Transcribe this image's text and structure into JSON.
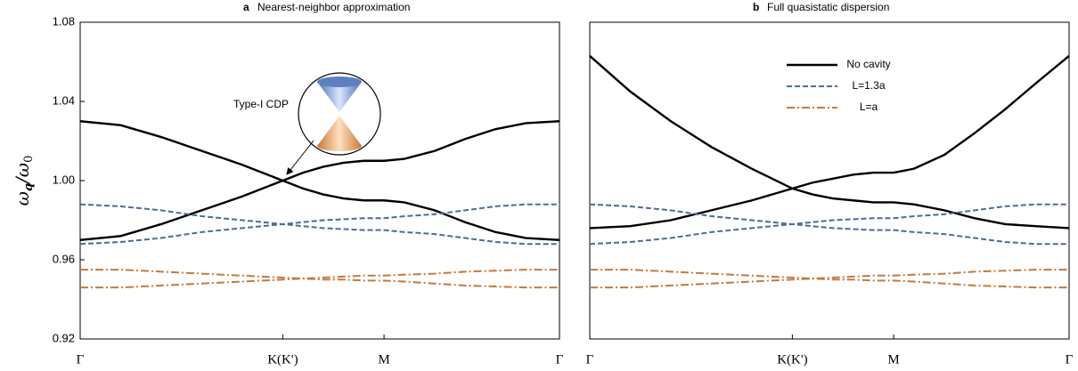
{
  "chart_data": [
    {
      "type": "line",
      "panel_label": "a",
      "title": "Nearest-neighbor approximation",
      "ylabel": [
        "ω",
        "q",
        "/ω",
        "0"
      ],
      "annotation": "Type-I CDP",
      "x": [
        0,
        0.2,
        0.4,
        0.6,
        0.8,
        1.0,
        1.1,
        1.2,
        1.3,
        1.4,
        1.5,
        1.6,
        1.75,
        1.9,
        2.05,
        2.2,
        2.366
      ],
      "xlim": [
        0,
        2.366
      ],
      "xticks": [
        {
          "value": 0,
          "label": "Γ"
        },
        {
          "value": 1,
          "label": "K(K')"
        },
        {
          "value": 1.5,
          "label": "M"
        },
        {
          "value": 2.366,
          "label": "Γ"
        }
      ],
      "ylim": [
        0.92,
        1.08
      ],
      "yticks": [
        0.92,
        0.96,
        {
          "value": 1,
          "label": "1.00"
        },
        1.04,
        1.08
      ],
      "series": [
        {
          "color": "#000000",
          "dash": "solid",
          "values": [
            1.03,
            1.028,
            1.022,
            1.015,
            1.008,
            1.0,
            0.996,
            0.993,
            0.991,
            0.99,
            0.99,
            0.989,
            0.985,
            0.979,
            0.974,
            0.971,
            0.97
          ]
        },
        {
          "color": "#000000",
          "dash": "solid",
          "values": [
            0.97,
            0.972,
            0.978,
            0.985,
            0.992,
            1.0,
            1.004,
            1.007,
            1.009,
            1.01,
            1.01,
            1.011,
            1.015,
            1.021,
            1.026,
            1.029,
            1.03
          ]
        },
        {
          "color": "#4f6a9a",
          "dash": "dashed",
          "values": [
            0.988,
            0.987,
            0.985,
            0.982,
            0.98,
            0.978,
            0.977,
            0.976,
            0.9755,
            0.975,
            0.975,
            0.974,
            0.973,
            0.971,
            0.969,
            0.968,
            0.968
          ]
        },
        {
          "color": "#4f6a9a",
          "dash": "dashed",
          "values": [
            0.968,
            0.969,
            0.971,
            0.974,
            0.976,
            0.978,
            0.979,
            0.98,
            0.9805,
            0.981,
            0.981,
            0.982,
            0.983,
            0.985,
            0.987,
            0.988,
            0.988
          ]
        },
        {
          "color": "#c47a3e",
          "dash": "dashdot",
          "values": [
            0.955,
            0.955,
            0.954,
            0.953,
            0.952,
            0.951,
            0.9505,
            0.95,
            0.95,
            0.9495,
            0.9495,
            0.949,
            0.948,
            0.947,
            0.9465,
            0.946,
            0.946
          ]
        },
        {
          "color": "#c47a3e",
          "dash": "dashdot",
          "values": [
            0.946,
            0.946,
            0.947,
            0.948,
            0.949,
            0.95,
            0.9505,
            0.951,
            0.9515,
            0.952,
            0.952,
            0.9525,
            0.953,
            0.954,
            0.9545,
            0.955,
            0.955
          ]
        }
      ]
    },
    {
      "type": "line",
      "panel_label": "b",
      "title": "Full quasistatic dispersion",
      "legend": "upper center",
      "x": [
        0,
        0.2,
        0.4,
        0.6,
        0.8,
        1.0,
        1.1,
        1.2,
        1.3,
        1.4,
        1.5,
        1.6,
        1.75,
        1.9,
        2.05,
        2.2,
        2.366
      ],
      "xlim": [
        0,
        2.366
      ],
      "xticks": [
        {
          "value": 0,
          "label": "Γ"
        },
        {
          "value": 1,
          "label": "K(K')"
        },
        {
          "value": 1.5,
          "label": "M"
        },
        {
          "value": 2.366,
          "label": "Γ"
        }
      ],
      "ylim": [
        0.92,
        1.08
      ],
      "series": [
        {
          "name": "No cavity",
          "color": "#000000",
          "dash": "solid",
          "values": [
            1.063,
            1.045,
            1.03,
            1.017,
            1.006,
            0.996,
            0.993,
            0.991,
            0.99,
            0.989,
            0.989,
            0.988,
            0.985,
            0.981,
            0.978,
            0.977,
            0.976
          ]
        },
        {
          "color": "#000000",
          "dash": "solid",
          "values": [
            0.976,
            0.977,
            0.98,
            0.985,
            0.99,
            0.996,
            0.999,
            1.001,
            1.003,
            1.004,
            1.004,
            1.006,
            1.013,
            1.024,
            1.036,
            1.049,
            1.063
          ]
        },
        {
          "name": "L=1.3a",
          "color": "#4f6a9a",
          "dash": "dashed",
          "values": [
            0.988,
            0.987,
            0.985,
            0.982,
            0.98,
            0.978,
            0.977,
            0.976,
            0.9755,
            0.975,
            0.975,
            0.974,
            0.973,
            0.971,
            0.969,
            0.968,
            0.968
          ]
        },
        {
          "color": "#4f6a9a",
          "dash": "dashed",
          "values": [
            0.968,
            0.969,
            0.971,
            0.974,
            0.976,
            0.978,
            0.979,
            0.98,
            0.9805,
            0.981,
            0.981,
            0.982,
            0.983,
            0.985,
            0.987,
            0.988,
            0.988
          ]
        },
        {
          "name": "L=a",
          "color": "#c47a3e",
          "dash": "dashdot",
          "values": [
            0.955,
            0.955,
            0.954,
            0.953,
            0.952,
            0.951,
            0.9505,
            0.95,
            0.95,
            0.9495,
            0.9495,
            0.949,
            0.948,
            0.947,
            0.9465,
            0.946,
            0.946
          ]
        },
        {
          "color": "#c47a3e",
          "dash": "dashdot",
          "values": [
            0.946,
            0.946,
            0.947,
            0.948,
            0.949,
            0.95,
            0.9505,
            0.951,
            0.9515,
            0.952,
            0.952,
            0.9525,
            0.953,
            0.954,
            0.9545,
            0.955,
            0.955
          ]
        }
      ]
    }
  ]
}
